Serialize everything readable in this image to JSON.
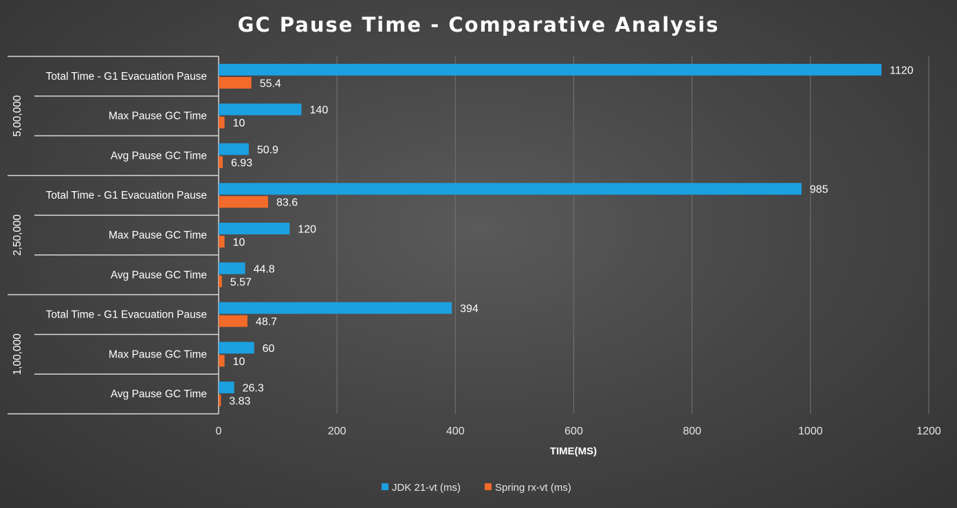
{
  "chart_data": {
    "type": "bar",
    "orientation": "horizontal",
    "title": "GC Pause Time - Comparative Analysis",
    "xlabel": "TIME(MS)",
    "xlim": [
      0,
      1200
    ],
    "xticks": [
      "0",
      "200",
      "400",
      "600",
      "800",
      "1000",
      "1200"
    ],
    "grid": true,
    "legend_position": "bottom",
    "groups": [
      {
        "label": "5,00,000",
        "categories": [
          "Total Time - G1 Evacuation Pause",
          "Max Pause GC Time",
          "Avg Pause GC Time"
        ],
        "series_values": [
          [
            1120,
            140,
            50.9
          ],
          [
            55.4,
            10,
            6.93
          ]
        ],
        "value_labels": [
          [
            "1120",
            "140",
            "50.9"
          ],
          [
            "55.4",
            "10",
            "6.93"
          ]
        ]
      },
      {
        "label": "2,50,000",
        "categories": [
          "Total Time - G1 Evacuation Pause",
          "Max Pause GC Time",
          "Avg Pause GC Time"
        ],
        "series_values": [
          [
            985,
            120,
            44.8
          ],
          [
            83.6,
            10,
            5.57
          ]
        ],
        "value_labels": [
          [
            "985",
            "120",
            "44.8"
          ],
          [
            "83.6",
            "10",
            "5.57"
          ]
        ]
      },
      {
        "label": "1,00,000",
        "categories": [
          "Total Time - G1 Evacuation Pause",
          "Max Pause GC Time",
          "Avg Pause GC Time"
        ],
        "series_values": [
          [
            394,
            60,
            26.3
          ],
          [
            48.7,
            10,
            3.83
          ]
        ],
        "value_labels": [
          [
            "394",
            "60",
            "26.3"
          ],
          [
            "48.7",
            "10",
            "3.83"
          ]
        ]
      }
    ],
    "series": [
      {
        "name": "JDK 21-vt  (ms)",
        "color": "#1ca0e0"
      },
      {
        "name": "Spring rx-vt  (ms)",
        "color": "#f26b2a"
      }
    ]
  }
}
